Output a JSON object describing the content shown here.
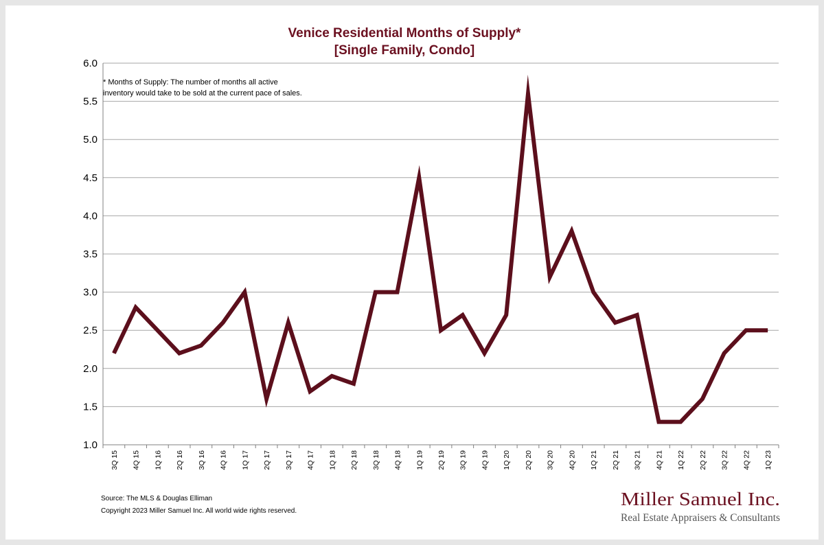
{
  "chart_data": {
    "type": "line",
    "title": "Venice Residential Months of Supply*",
    "subtitle": "[Single Family, Condo]",
    "note_lines": [
      "* Months of Supply: The number of months all active",
      "inventory would take to be sold at the current pace of sales."
    ],
    "categories": [
      "3Q 15",
      "4Q 15",
      "1Q 16",
      "2Q 16",
      "3Q 16",
      "4Q 16",
      "1Q 17",
      "2Q 17",
      "3Q 17",
      "4Q 17",
      "1Q 18",
      "2Q 18",
      "3Q 18",
      "4Q 18",
      "1Q 19",
      "2Q 19",
      "3Q 19",
      "4Q 19",
      "1Q 20",
      "2Q 20",
      "3Q 20",
      "4Q 20",
      "1Q 21",
      "2Q 21",
      "3Q 21",
      "4Q 21",
      "1Q 22",
      "2Q 22",
      "3Q 22",
      "4Q 22",
      "1Q 23"
    ],
    "values": [
      2.2,
      2.8,
      2.5,
      2.2,
      2.3,
      2.6,
      3.0,
      1.6,
      2.6,
      1.7,
      1.9,
      1.8,
      3.0,
      3.0,
      4.5,
      2.5,
      2.7,
      2.2,
      2.7,
      5.6,
      3.2,
      3.8,
      3.0,
      2.6,
      2.7,
      1.3,
      1.3,
      1.6,
      2.2,
      2.5,
      2.5
    ],
    "ylim": [
      1.0,
      6.0
    ],
    "yticks": [
      "1.0",
      "1.5",
      "2.0",
      "2.5",
      "3.0",
      "3.5",
      "4.0",
      "4.5",
      "5.0",
      "5.5",
      "6.0"
    ],
    "grid": true,
    "line_color": "#5c0f1c",
    "xlabel": "",
    "ylabel": ""
  },
  "footer": {
    "source": "Source: The MLS & Douglas Elliman",
    "copyright": "Copyright 2023 Miller Samuel Inc.  All world wide rights reserved."
  },
  "brand": {
    "name": "Miller Samuel Inc.",
    "tagline": "Real Estate Appraisers & Consultants",
    "color": "#6b1020"
  }
}
